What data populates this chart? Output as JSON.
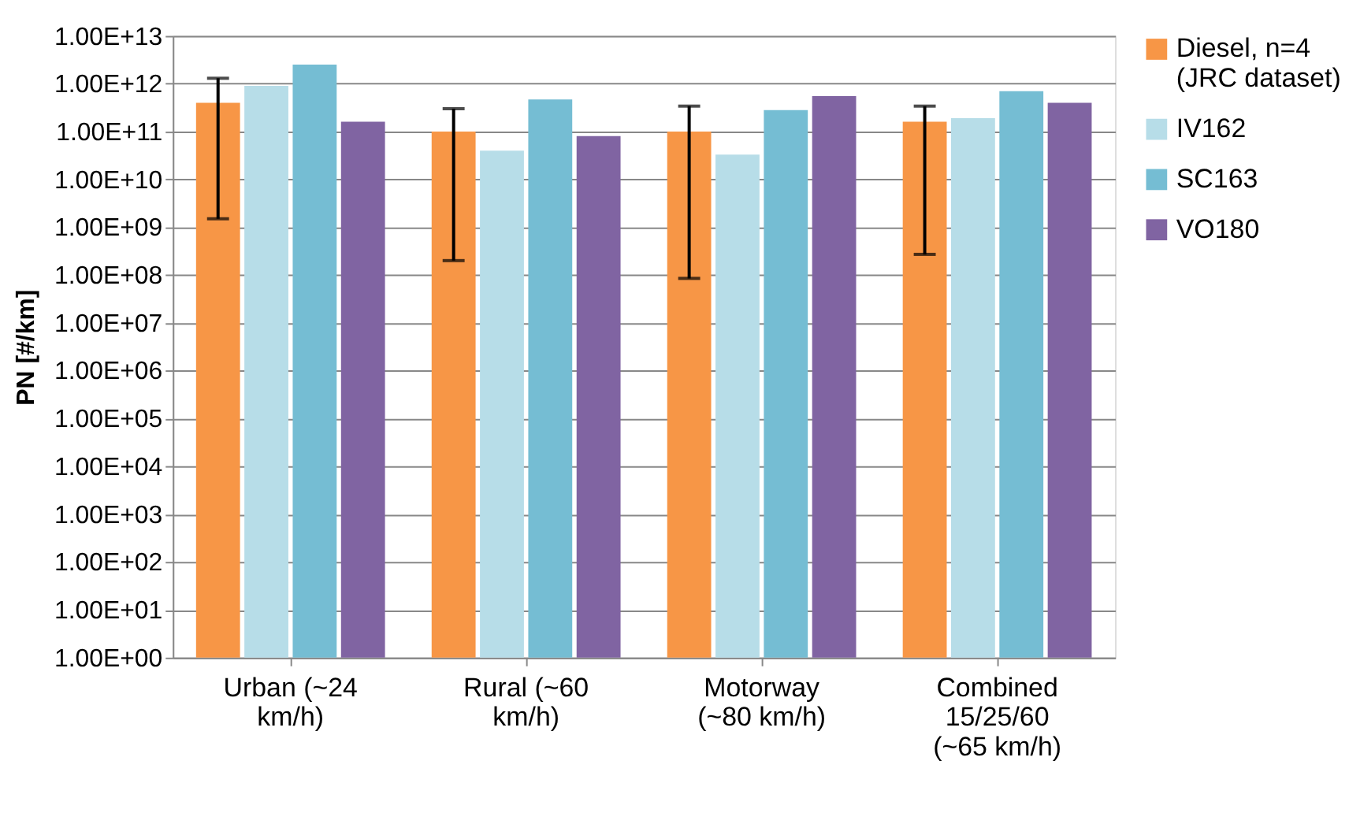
{
  "chart_data": {
    "type": "bar",
    "ylabel": "PN [#/km]",
    "categories": [
      "Urban (~24 km/h)",
      "Rural (~60 km/h)",
      "Motorway (~80 km/h)",
      "Combined 15/25/60 (~65 km/h)"
    ],
    "series": [
      {
        "name": "Diesel, n=4 (JRC dataset)",
        "color": "#f79646",
        "values": [
          400000000000.0,
          100000000000.0,
          100000000000.0,
          160000000000.0
        ],
        "errors": [
          [
            1500000000.0,
            1300000000000.0
          ],
          [
            200000000.0,
            300000000000.0
          ],
          [
            85000000.0,
            340000000000.0
          ],
          [
            270000000.0,
            340000000000.0
          ]
        ]
      },
      {
        "name": "IV162",
        "color": "#b7dde8",
        "values": [
          900000000000.0,
          40000000000.0,
          33000000000.0,
          190000000000.0
        ]
      },
      {
        "name": "SC163",
        "color": "#75bdd3",
        "values": [
          2500000000000.0,
          470000000000.0,
          280000000000.0,
          700000000000.0
        ]
      },
      {
        "name": "VO180",
        "color": "#8064a2",
        "values": [
          160000000000.0,
          80000000000.0,
          550000000000.0,
          400000000000.0
        ]
      }
    ],
    "log": true,
    "ylim": [
      1,
      10000000000000.0
    ],
    "yticks": [
      {
        "value": 1,
        "label": "1.00E+00"
      },
      {
        "value": 10,
        "label": "1.00E+01"
      },
      {
        "value": 100,
        "label": "1.00E+02"
      },
      {
        "value": 1000,
        "label": "1.00E+03"
      },
      {
        "value": 10000.0,
        "label": "1.00E+04"
      },
      {
        "value": 100000.0,
        "label": "1.00E+05"
      },
      {
        "value": 1000000.0,
        "label": "1.00E+06"
      },
      {
        "value": 10000000.0,
        "label": "1.00E+07"
      },
      {
        "value": 100000000.0,
        "label": "1.00E+08"
      },
      {
        "value": 1000000000.0,
        "label": "1.00E+09"
      },
      {
        "value": 10000000000.0,
        "label": "1.00E+10"
      },
      {
        "value": 100000000000.0,
        "label": "1.00E+11"
      },
      {
        "value": 1000000000000.0,
        "label": "1.00E+12"
      },
      {
        "value": 10000000000000.0,
        "label": "1.00E+13"
      }
    ],
    "grid": "y",
    "legend": "right"
  }
}
